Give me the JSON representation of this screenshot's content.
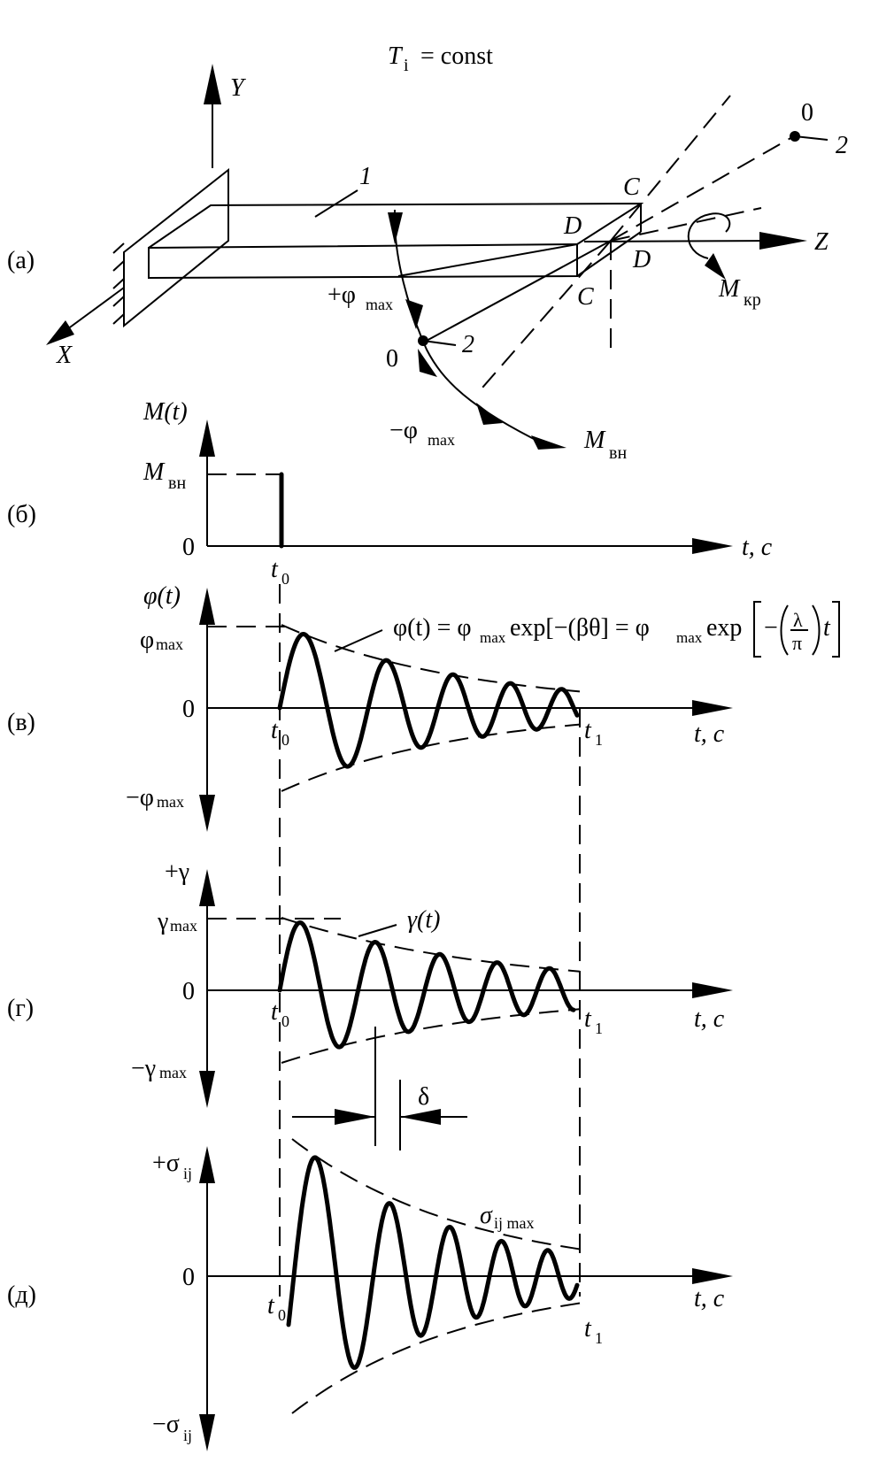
{
  "title": "T",
  "title_sub": "i",
  "title_rest": "= const",
  "panels": {
    "a": "(а)",
    "b": "(б)",
    "v": "(в)",
    "g": "(г)",
    "d": "(д)"
  },
  "beam": {
    "axis_x": "X",
    "axis_y": "Y",
    "axis_z": "Z",
    "label_1": "1",
    "label_2_near": "2",
    "label_2_far": "2",
    "label_0_near": "0",
    "label_0_far": "0",
    "label_C_top": "C",
    "label_C_bottom": "C",
    "label_D_top": "D",
    "label_D_bottom": "D",
    "phi_plus": "+φ",
    "phi_plus_sub": "max",
    "phi_minus": "−φ",
    "phi_minus_sub": "max",
    "m_kr": "M",
    "m_kr_sub": "кр",
    "m_vn": "M",
    "m_vn_sub": "вн"
  },
  "moment_chart": {
    "ylabel": "M(t)",
    "level": "M",
    "level_sub": "вн",
    "zero": "0",
    "t0": "t",
    "t0_sub": "0",
    "xlabel": "t, с"
  },
  "phi_chart": {
    "ylabel": "φ(t)",
    "top": "φ",
    "top_sub": "max",
    "zero": "0",
    "bottom": "−φ",
    "bottom_sub": "max",
    "t0": "t",
    "t0_sub": "0",
    "t1": "t",
    "t1_sub": "1",
    "xlabel": "t, с",
    "formula_left": "φ(t) = φ",
    "formula_sub1": "max",
    "formula_mid": "exp[−(βθ] = φ",
    "formula_sub2": "max",
    "formula_exp": "exp",
    "formula_minus": "−",
    "formula_lambda": "λ",
    "formula_pi": "π",
    "formula_t": "t"
  },
  "gamma_chart": {
    "ylabel": "+γ",
    "top": "γ",
    "top_sub": "max",
    "zero": "0",
    "bottom": "−γ",
    "bottom_sub": "max",
    "curve_label": "γ(t)",
    "t0": "t",
    "t0_sub": "0",
    "t1": "t",
    "t1_sub": "1",
    "xlabel": "t, с",
    "delta": "δ"
  },
  "sigma_chart": {
    "top": "+σ",
    "top_sub": "ij",
    "zero": "0",
    "bottom": "−σ",
    "bottom_sub": "ij",
    "curve_label": "σ",
    "curve_label_sub": "ij max",
    "t0": "t",
    "t0_sub": "0",
    "t1": "t",
    "t1_sub": "1",
    "xlabel": "t, с"
  }
}
